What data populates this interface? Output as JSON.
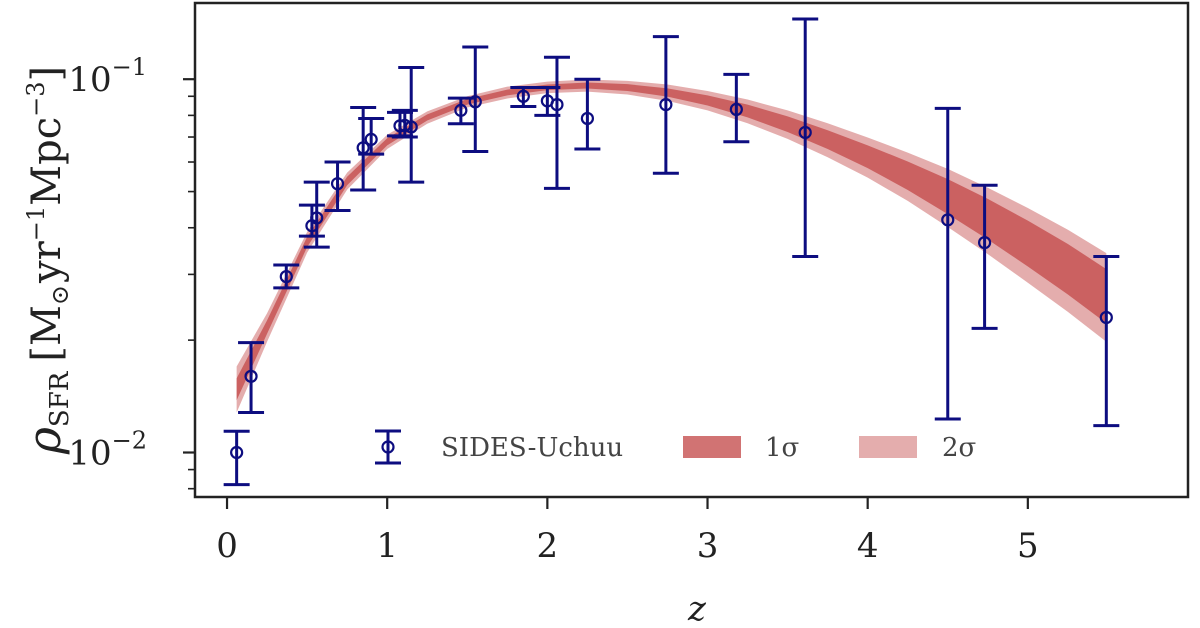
{
  "chart_data": {
    "type": "scatter",
    "title": "",
    "xlabel": "z",
    "ylabel": {
      "symbol": "ρ",
      "subscript": "SFR",
      "units_prefix": "[M",
      "units_sun": "⊙",
      "units_yr": "yr",
      "units_yr_exp": "−1",
      "units_mpc": "Mpc",
      "units_mpc_exp": "−3",
      "units_suffix": "]"
    },
    "xlim": [
      -0.2,
      6.0
    ],
    "ylim": [
      0.0076,
      0.16
    ],
    "yscale": "log",
    "grid": false,
    "legend_position": "bottom-center",
    "x_ticks": [
      {
        "value": 0,
        "label": "0"
      },
      {
        "value": 1,
        "label": "1"
      },
      {
        "value": 2,
        "label": "2"
      },
      {
        "value": 3,
        "label": "3"
      },
      {
        "value": 4,
        "label": "4"
      },
      {
        "value": 5,
        "label": "5"
      }
    ],
    "y_ticks": [
      {
        "value": 0.01,
        "base": "10",
        "exp": "−2"
      },
      {
        "value": 0.1,
        "base": "10",
        "exp": "−1"
      }
    ],
    "series": [
      {
        "name": "SIDES-Uchuu",
        "kind": "errorbar",
        "color": "#0d0d80",
        "points": [
          {
            "x": 0.06,
            "y": 0.01,
            "lo": 0.0082,
            "hi": 0.0114
          },
          {
            "x": 0.15,
            "y": 0.016,
            "lo": 0.0128,
            "hi": 0.0197
          },
          {
            "x": 0.37,
            "y": 0.0296,
            "lo": 0.0276,
            "hi": 0.0318
          },
          {
            "x": 0.53,
            "y": 0.0405,
            "lo": 0.038,
            "hi": 0.046
          },
          {
            "x": 0.56,
            "y": 0.0425,
            "lo": 0.0355,
            "hi": 0.053
          },
          {
            "x": 0.69,
            "y": 0.0525,
            "lo": 0.0445,
            "hi": 0.06
          },
          {
            "x": 0.85,
            "y": 0.0655,
            "lo": 0.0505,
            "hi": 0.084
          },
          {
            "x": 0.9,
            "y": 0.069,
            "lo": 0.063,
            "hi": 0.0785
          },
          {
            "x": 1.08,
            "y": 0.075,
            "lo": 0.0705,
            "hi": 0.0815
          },
          {
            "x": 1.11,
            "y": 0.0752,
            "lo": 0.07,
            "hi": 0.0825
          },
          {
            "x": 1.15,
            "y": 0.0745,
            "lo": 0.053,
            "hi": 0.1075
          },
          {
            "x": 1.46,
            "y": 0.0825,
            "lo": 0.076,
            "hi": 0.089
          },
          {
            "x": 1.55,
            "y": 0.087,
            "lo": 0.064,
            "hi": 0.122
          },
          {
            "x": 1.85,
            "y": 0.09,
            "lo": 0.0845,
            "hi": 0.095
          },
          {
            "x": 2.0,
            "y": 0.0875,
            "lo": 0.08,
            "hi": 0.095
          },
          {
            "x": 2.06,
            "y": 0.0855,
            "lo": 0.051,
            "hi": 0.1145
          },
          {
            "x": 2.25,
            "y": 0.0785,
            "lo": 0.065,
            "hi": 0.1
          },
          {
            "x": 2.74,
            "y": 0.0855,
            "lo": 0.056,
            "hi": 0.13
          },
          {
            "x": 3.18,
            "y": 0.083,
            "lo": 0.068,
            "hi": 0.103
          },
          {
            "x": 3.61,
            "y": 0.072,
            "lo": 0.0335,
            "hi": 0.145
          },
          {
            "x": 4.5,
            "y": 0.042,
            "lo": 0.0123,
            "hi": 0.0835
          },
          {
            "x": 4.73,
            "y": 0.0365,
            "lo": 0.0215,
            "hi": 0.052
          },
          {
            "x": 5.49,
            "y": 0.023,
            "lo": 0.0118,
            "hi": 0.0335
          }
        ]
      },
      {
        "name": "1σ",
        "kind": "band",
        "color": "#c44b4b",
        "opacity": 0.78,
        "points": [
          {
            "x": 0.06,
            "lo": 0.0138,
            "hi": 0.0158
          },
          {
            "x": 0.25,
            "lo": 0.0208,
            "hi": 0.0226
          },
          {
            "x": 0.5,
            "lo": 0.0355,
            "hi": 0.0378
          },
          {
            "x": 0.75,
            "lo": 0.052,
            "hi": 0.0548
          },
          {
            "x": 1.0,
            "lo": 0.0665,
            "hi": 0.0695
          },
          {
            "x": 1.25,
            "lo": 0.0775,
            "hi": 0.0805
          },
          {
            "x": 1.5,
            "lo": 0.0855,
            "hi": 0.0885
          },
          {
            "x": 1.75,
            "lo": 0.0905,
            "hi": 0.0938
          },
          {
            "x": 2.0,
            "lo": 0.0935,
            "hi": 0.0968
          },
          {
            "x": 2.25,
            "lo": 0.0944,
            "hi": 0.098
          },
          {
            "x": 2.5,
            "lo": 0.093,
            "hi": 0.097
          },
          {
            "x": 2.75,
            "lo": 0.0898,
            "hi": 0.0945
          },
          {
            "x": 3.0,
            "lo": 0.085,
            "hi": 0.0905
          },
          {
            "x": 3.25,
            "lo": 0.079,
            "hi": 0.0855
          },
          {
            "x": 3.5,
            "lo": 0.0722,
            "hi": 0.0795
          },
          {
            "x": 3.75,
            "lo": 0.065,
            "hi": 0.073
          },
          {
            "x": 4.0,
            "lo": 0.0578,
            "hi": 0.0665
          },
          {
            "x": 4.25,
            "lo": 0.0505,
            "hi": 0.0602
          },
          {
            "x": 4.5,
            "lo": 0.0435,
            "hi": 0.054
          },
          {
            "x": 4.75,
            "lo": 0.0372,
            "hi": 0.0478
          },
          {
            "x": 5.0,
            "lo": 0.0315,
            "hi": 0.0418
          },
          {
            "x": 5.25,
            "lo": 0.0265,
            "hi": 0.0362
          },
          {
            "x": 5.49,
            "lo": 0.0222,
            "hi": 0.031
          }
        ]
      },
      {
        "name": "2σ",
        "kind": "band",
        "color": "#d88a8a",
        "opacity": 0.7,
        "points": [
          {
            "x": 0.06,
            "lo": 0.0128,
            "hi": 0.017
          },
          {
            "x": 0.25,
            "lo": 0.0198,
            "hi": 0.0236
          },
          {
            "x": 0.5,
            "lo": 0.0343,
            "hi": 0.039
          },
          {
            "x": 0.75,
            "lo": 0.0506,
            "hi": 0.0562
          },
          {
            "x": 1.0,
            "lo": 0.065,
            "hi": 0.071
          },
          {
            "x": 1.25,
            "lo": 0.076,
            "hi": 0.082
          },
          {
            "x": 1.5,
            "lo": 0.084,
            "hi": 0.09
          },
          {
            "x": 1.75,
            "lo": 0.0888,
            "hi": 0.0955
          },
          {
            "x": 2.0,
            "lo": 0.0918,
            "hi": 0.0985
          },
          {
            "x": 2.25,
            "lo": 0.0926,
            "hi": 0.0998
          },
          {
            "x": 2.5,
            "lo": 0.091,
            "hi": 0.099
          },
          {
            "x": 2.75,
            "lo": 0.0875,
            "hi": 0.0968
          },
          {
            "x": 3.0,
            "lo": 0.0825,
            "hi": 0.093
          },
          {
            "x": 3.25,
            "lo": 0.0762,
            "hi": 0.0882
          },
          {
            "x": 3.5,
            "lo": 0.0692,
            "hi": 0.0825
          },
          {
            "x": 3.75,
            "lo": 0.0618,
            "hi": 0.0762
          },
          {
            "x": 4.0,
            "lo": 0.0545,
            "hi": 0.0698
          },
          {
            "x": 4.25,
            "lo": 0.0472,
            "hi": 0.0636
          },
          {
            "x": 4.5,
            "lo": 0.0402,
            "hi": 0.0575
          },
          {
            "x": 4.75,
            "lo": 0.034,
            "hi": 0.0512
          },
          {
            "x": 5.0,
            "lo": 0.0285,
            "hi": 0.0452
          },
          {
            "x": 5.25,
            "lo": 0.0238,
            "hi": 0.0395
          },
          {
            "x": 5.49,
            "lo": 0.0198,
            "hi": 0.0342
          }
        ]
      }
    ],
    "legend": [
      {
        "label": "SIDES-Uchuu",
        "kind": "errorbar",
        "color": "#0d0d80"
      },
      {
        "label": "1σ",
        "kind": "band",
        "color": "#c44b4b",
        "opacity": 0.78
      },
      {
        "label": "2σ",
        "kind": "band",
        "color": "#d88a8a",
        "opacity": 0.7
      }
    ]
  }
}
